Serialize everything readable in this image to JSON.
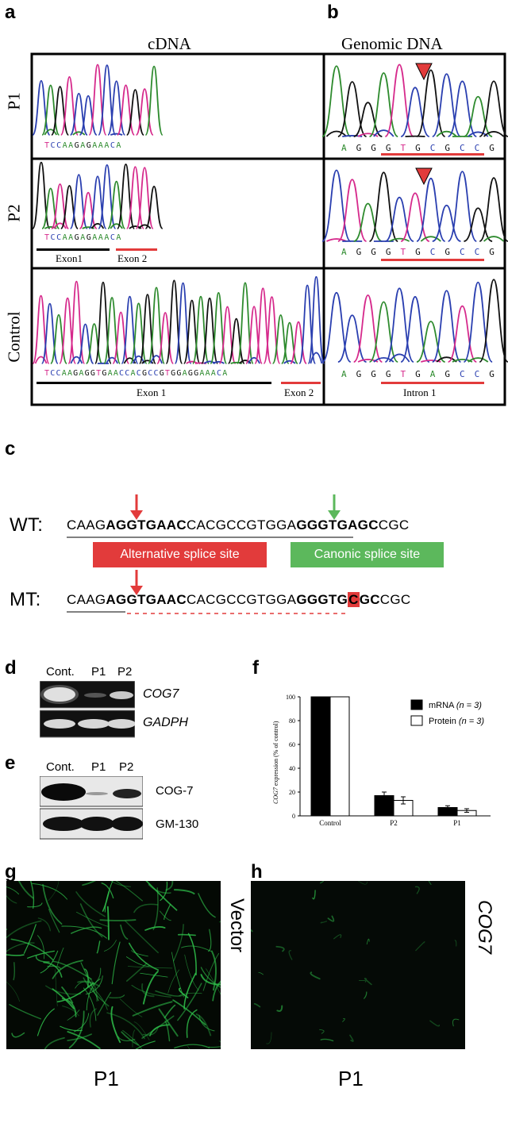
{
  "panels": {
    "a": "a",
    "b": "b",
    "c": "c",
    "d": "d",
    "e": "e",
    "f": "f",
    "g": "g",
    "h": "h"
  },
  "panel_ab": {
    "title_cdna": "cDNA",
    "title_genomic": "Genomic DNA",
    "rows": [
      "P1",
      "P2",
      "Control"
    ],
    "cdna_p1_seq": "TCCAAGAGAAACA",
    "cdna_p2_seq": "TCCAAGAGAAACA",
    "cdna_ctrl_seq": "TCCAAGAGGTGAACCACGCCGTGGAGGAAACA",
    "gen_p1_seq": "AGGGTGCGCCG",
    "gen_p2_seq": "AGGGTGCGCCG",
    "gen_ctrl_seq": "AGGGTGAGCCG",
    "exon1": "Exon1",
    "exon2": "Exon 2",
    "exon1_ctrl": "Exon 1",
    "exon2_ctrl": "Exon 2",
    "intron1": "Intron 1",
    "colors": {
      "A": "#2e8b2e",
      "C": "#2a3fb0",
      "G": "#111111",
      "T": "#d62a8c",
      "red": "#e23b3b"
    }
  },
  "panel_c": {
    "wt_label": "WT:",
    "mt_label": "MT:",
    "wt_seq": {
      "p1": "CAAG",
      "p2": "AGGTGAAC",
      "p3": "CACGCCGTGGA",
      "p4": "GGGTGAGC",
      "p5": "CGC"
    },
    "mt_seq": {
      "p1": "CAAG",
      "p2": "AGGTGAAC",
      "p3": "CACGCCGTGGA",
      "p4": "GGGTG",
      "p5": "C",
      "p6": "GC",
      "p7": "CGC"
    },
    "alt_site": "Alternative splice site",
    "canon_site": "Canonic splice site",
    "colors": {
      "alt": "#e23b3b",
      "canon": "#5cb85c",
      "arrow_red": "#e23b3b",
      "arrow_green": "#5cb85c"
    }
  },
  "panel_d": {
    "lanes": [
      "Cont.",
      "P1",
      "P2"
    ],
    "gene1": "COG7",
    "gene2": "GADPH"
  },
  "panel_e": {
    "lanes": [
      "Cont.",
      "P1",
      "P2"
    ],
    "protein1": "COG-7",
    "protein2": "GM-130"
  },
  "chart_data": {
    "type": "bar",
    "categories": [
      "Control",
      "P2",
      "P1"
    ],
    "series": [
      {
        "name": "mRNA",
        "name_n": "(n = 3)",
        "values": [
          100,
          17,
          7
        ],
        "errors": [
          0,
          3,
          1.5
        ],
        "color": "#000000"
      },
      {
        "name": "Protein",
        "name_n": "(n = 3)",
        "values": [
          100,
          13,
          4.5
        ],
        "errors": [
          0,
          3,
          1.5
        ],
        "color": "#ffffff"
      }
    ],
    "ylabel_gene": "COG7",
    "ylabel_rest": " expression (% of control)",
    "ylim": [
      0,
      100
    ],
    "yticks": [
      "0",
      "20",
      "40",
      "60",
      "80",
      "100"
    ],
    "legend": "top-right"
  },
  "panel_gh": {
    "g_label": "Vector",
    "h_label": "COG7",
    "g_sub": "P1",
    "h_sub": "P1"
  }
}
